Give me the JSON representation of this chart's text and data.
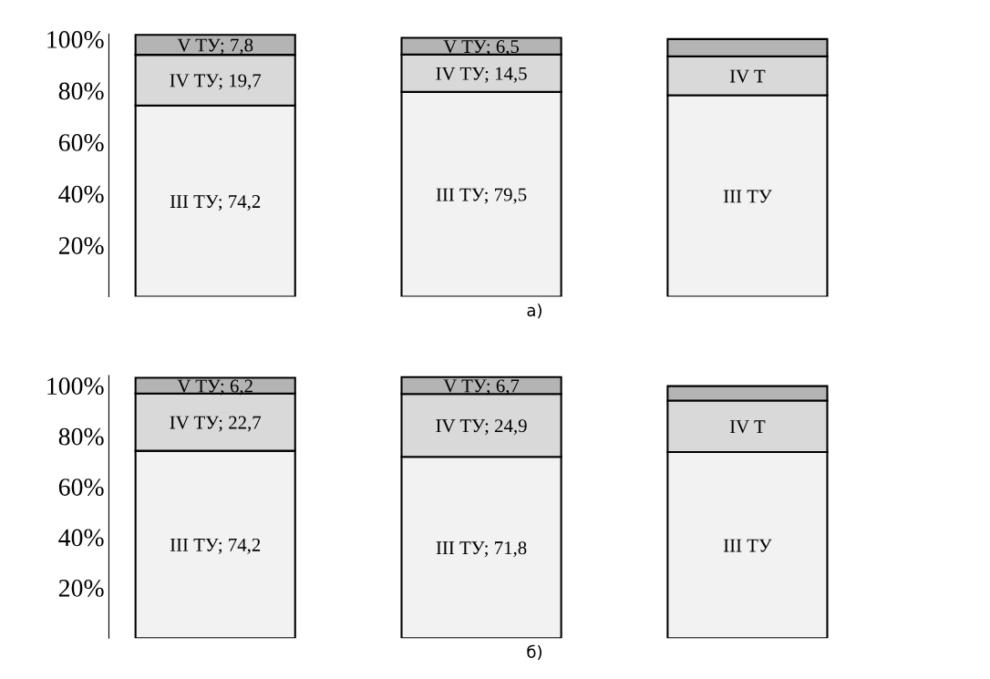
{
  "chart_data": [
    {
      "type": "bar",
      "stacked": true,
      "xlabel": "а)",
      "categories": [
        null,
        null,
        null
      ],
      "ylim": [
        0,
        102
      ],
      "yticks": [
        {
          "value": 20,
          "label": "20%"
        },
        {
          "value": 40,
          "label": "40%"
        },
        {
          "value": 60,
          "label": "60%"
        },
        {
          "value": 80,
          "label": "80%"
        },
        {
          "value": 100,
          "label": "100%"
        }
      ],
      "grid": false,
      "series": [
        {
          "color": "#f2f2f2",
          "values": [
            74.2,
            79.5,
            78.2
          ],
          "value_labels": [
            "III ТУ; 74,2",
            "III ТУ; 79,5",
            "III ТУ"
          ]
        },
        {
          "color": "#d9d9d9",
          "values": [
            19.7,
            14.5,
            15.1
          ],
          "value_labels": [
            "IV ТУ; 19,7",
            "IV ТУ; 14,5",
            "IV Т"
          ]
        },
        {
          "color": "#b4b4b4",
          "values": [
            7.8,
            6.5,
            6.7
          ],
          "value_labels": [
            "V ТУ; 7,8",
            "V ТУ; 6,5",
            null
          ]
        }
      ]
    },
    {
      "type": "bar",
      "stacked": true,
      "xlabel": "б)",
      "categories": [
        null,
        null,
        null
      ],
      "ylim": [
        0,
        104
      ],
      "yticks": [
        {
          "value": 20,
          "label": "20%"
        },
        {
          "value": 40,
          "label": "40%"
        },
        {
          "value": 60,
          "label": "60%"
        },
        {
          "value": 80,
          "label": "80%"
        },
        {
          "value": 100,
          "label": "100%"
        }
      ],
      "grid": false,
      "series": [
        {
          "color": "#f2f2f2",
          "values": [
            74.2,
            71.8,
            73.7
          ],
          "value_labels": [
            "III ТУ; 74,2",
            "III ТУ; 71,8",
            "III ТУ"
          ]
        },
        {
          "color": "#d9d9d9",
          "values": [
            22.7,
            24.9,
            20.4
          ],
          "value_labels": [
            "IV ТУ; 22,7",
            "IV ТУ; 24,9",
            "IV Т"
          ]
        },
        {
          "color": "#b4b4b4",
          "values": [
            6.2,
            6.7,
            5.7
          ],
          "value_labels": [
            "V ТУ; 6,2",
            "V ТУ; 6,7",
            null
          ]
        }
      ]
    }
  ]
}
